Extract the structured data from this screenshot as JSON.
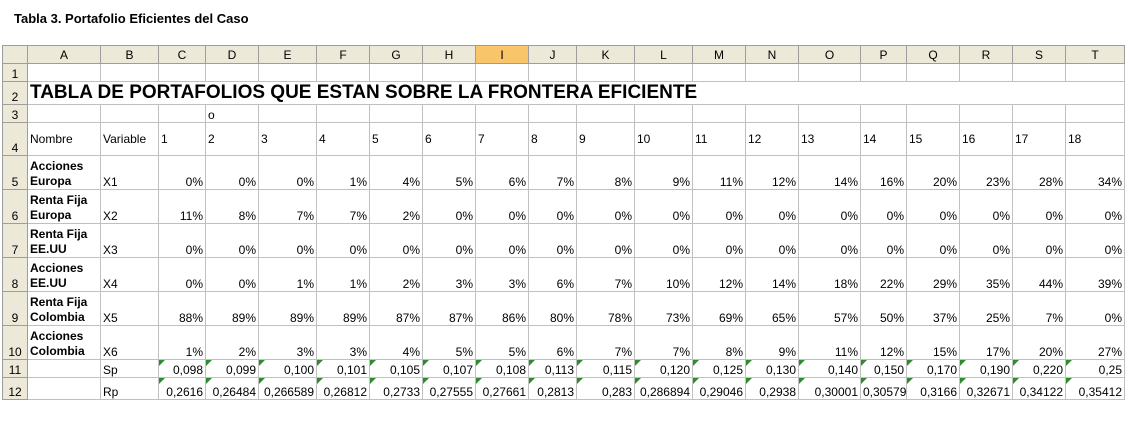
{
  "caption": "Tabla 3. Portafolio Eficientes del Caso",
  "columns": [
    "A",
    "B",
    "C",
    "D",
    "E",
    "F",
    "G",
    "H",
    "I",
    "J",
    "K",
    "L",
    "M",
    "N",
    "O",
    "P",
    "Q",
    "R",
    "S",
    "T"
  ],
  "selected_column": "I",
  "row_numbers": [
    "1",
    "2",
    "3",
    "4",
    "5",
    "6",
    "7",
    "8",
    "9",
    "10",
    "11",
    "12"
  ],
  "title": "TABLA DE PORTAFOLIOS QUE ESTAN SOBRE LA FRONTERA EFICIENTE",
  "row3_note": "o",
  "header": {
    "nombre": "Nombre",
    "variable": "Variable",
    "portfolios": [
      "1",
      "2",
      "3",
      "4",
      "5",
      "6",
      "7",
      "8",
      "9",
      "10",
      "11",
      "12",
      "13",
      "14",
      "15",
      "16",
      "17",
      "18"
    ]
  },
  "assets": [
    {
      "name_line1": "Acciones",
      "name_line2": "Europa",
      "variable": "X1",
      "values": [
        "0%",
        "0%",
        "0%",
        "1%",
        "4%",
        "5%",
        "6%",
        "7%",
        "8%",
        "9%",
        "11%",
        "12%",
        "14%",
        "16%",
        "20%",
        "23%",
        "28%",
        "34%"
      ]
    },
    {
      "name_line1": "Renta Fija",
      "name_line2": "Europa",
      "variable": "X2",
      "values": [
        "11%",
        "8%",
        "7%",
        "7%",
        "2%",
        "0%",
        "0%",
        "0%",
        "0%",
        "0%",
        "0%",
        "0%",
        "0%",
        "0%",
        "0%",
        "0%",
        "0%",
        "0%"
      ]
    },
    {
      "name_line1": "Renta Fija",
      "name_line2": "EE.UU",
      "variable": "X3",
      "values": [
        "0%",
        "0%",
        "0%",
        "0%",
        "0%",
        "0%",
        "0%",
        "0%",
        "0%",
        "0%",
        "0%",
        "0%",
        "0%",
        "0%",
        "0%",
        "0%",
        "0%",
        "0%"
      ]
    },
    {
      "name_line1": "Acciones",
      "name_line2": "EE.UU",
      "variable": "X4",
      "values": [
        "0%",
        "0%",
        "1%",
        "1%",
        "2%",
        "3%",
        "3%",
        "6%",
        "7%",
        "10%",
        "12%",
        "14%",
        "18%",
        "22%",
        "29%",
        "35%",
        "44%",
        "39%"
      ]
    },
    {
      "name_line1": "Renta Fija",
      "name_line2": "Colombia",
      "variable": "X5",
      "values": [
        "88%",
        "89%",
        "89%",
        "89%",
        "87%",
        "87%",
        "86%",
        "80%",
        "78%",
        "73%",
        "69%",
        "65%",
        "57%",
        "50%",
        "37%",
        "25%",
        "7%",
        "0%"
      ]
    },
    {
      "name_line1": "Acciones",
      "name_line2": "Colombia",
      "variable": "X6",
      "values": [
        "1%",
        "2%",
        "3%",
        "3%",
        "4%",
        "5%",
        "5%",
        "6%",
        "7%",
        "7%",
        "8%",
        "9%",
        "11%",
        "12%",
        "15%",
        "17%",
        "20%",
        "27%"
      ]
    }
  ],
  "sp": {
    "label": "Sp",
    "values": [
      "0,098",
      "0,099",
      "0,100",
      "0,101",
      "0,105",
      "0,107",
      "0,108",
      "0,113",
      "0,115",
      "0,120",
      "0,125",
      "0,130",
      "0,140",
      "0,150",
      "0,170",
      "0,190",
      "0,220",
      "0,25"
    ]
  },
  "rp": {
    "label": "Rp",
    "values": [
      "0,2616",
      "0,26484",
      "0,266589",
      "0,26812",
      "0,2733",
      "0,27555",
      "0,27661",
      "0,2813",
      "0,283",
      "0,286894",
      "0,29046",
      "0,2938",
      "0,30001",
      "0,305795",
      "0,3166",
      "0,32671",
      "0,34122",
      "0,35412"
    ]
  }
}
